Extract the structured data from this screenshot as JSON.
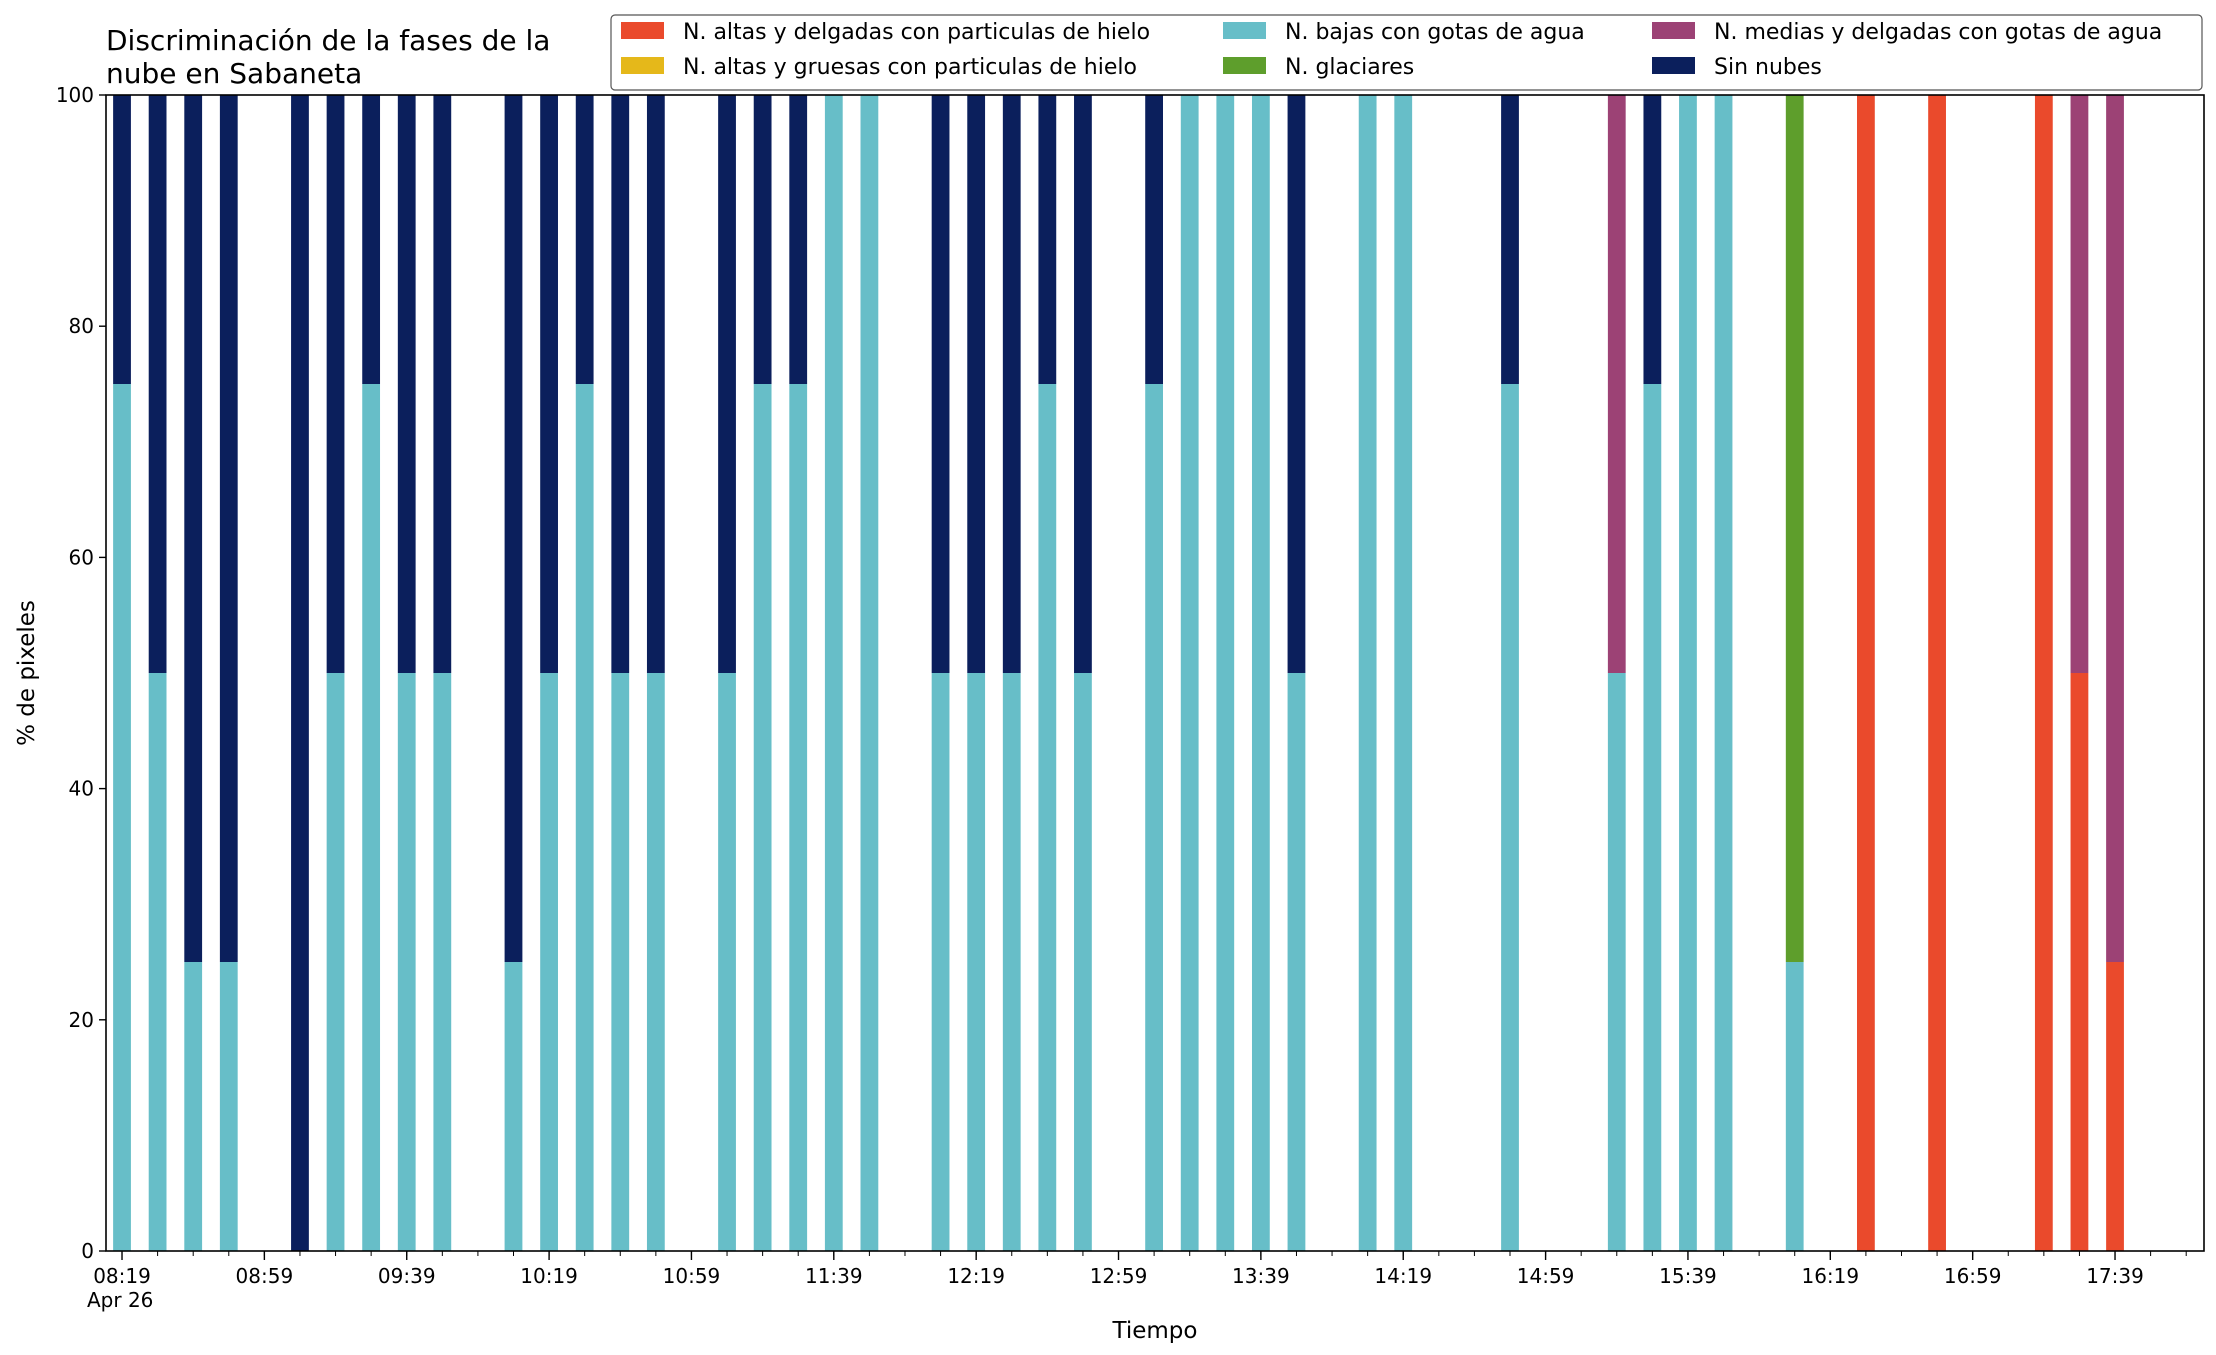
{
  "chart_data": {
    "type": "bar",
    "stacked": true,
    "title_lines": [
      "Discriminación de la fases de la",
      "nube en Sabaneta"
    ],
    "xlabel": "Tiempo",
    "ylabel": "% de pixeles",
    "ylim": [
      0,
      100
    ],
    "yticks": [
      "0",
      "20",
      "40",
      "60",
      "80",
      "100"
    ],
    "xticks": [
      {
        "label": "08:19",
        "sub": "Apr 26",
        "x": 0
      },
      {
        "label": "08:59",
        "x": 4
      },
      {
        "label": "09:39",
        "x": 8
      },
      {
        "label": "10:19",
        "x": 12
      },
      {
        "label": "10:59",
        "x": 16
      },
      {
        "label": "11:39",
        "x": 20
      },
      {
        "label": "12:19",
        "x": 24
      },
      {
        "label": "12:59",
        "x": 28
      },
      {
        "label": "13:39",
        "x": 32
      },
      {
        "label": "14:19",
        "x": 36
      },
      {
        "label": "14:59",
        "x": 40
      },
      {
        "label": "15:39",
        "x": 44
      },
      {
        "label": "16:19",
        "x": 48
      },
      {
        "label": "16:59",
        "x": 52
      },
      {
        "label": "17:39",
        "x": 56
      }
    ],
    "xlim": [
      -0.45,
      58.5
    ],
    "legend_position": "top-right",
    "series": [
      {
        "name": "N. altas y delgadas con particulas de hielo",
        "color": "#EA4A2C"
      },
      {
        "name": "N. altas y gruesas con particulas de hielo",
        "color": "#E5B81A"
      },
      {
        "name": "N. bajas con gotas de agua",
        "color": "#67BEC8"
      },
      {
        "name": "N. glaciares",
        "color": "#5E9E2C"
      },
      {
        "name": "N. medias y delgadas con gotas de agua",
        "color": "#9C4275"
      },
      {
        "name": "Sin nubes",
        "color": "#0B1F5C"
      }
    ],
    "bars": [
      {
        "x": 0,
        "values": [
          0,
          0,
          75,
          0,
          0,
          25
        ]
      },
      {
        "x": 1,
        "values": [
          0,
          0,
          50,
          0,
          0,
          50
        ]
      },
      {
        "x": 2,
        "values": [
          0,
          0,
          25,
          0,
          0,
          75
        ]
      },
      {
        "x": 3,
        "values": [
          0,
          0,
          25,
          0,
          0,
          75
        ]
      },
      {
        "x": 5,
        "values": [
          0,
          0,
          0,
          0,
          0,
          100
        ]
      },
      {
        "x": 6,
        "values": [
          0,
          0,
          50,
          0,
          0,
          50
        ]
      },
      {
        "x": 7,
        "values": [
          0,
          0,
          75,
          0,
          0,
          25
        ]
      },
      {
        "x": 8,
        "values": [
          0,
          0,
          50,
          0,
          0,
          50
        ]
      },
      {
        "x": 9,
        "values": [
          0,
          0,
          50,
          0,
          0,
          50
        ]
      },
      {
        "x": 11,
        "values": [
          0,
          0,
          25,
          0,
          0,
          75
        ]
      },
      {
        "x": 12,
        "values": [
          0,
          0,
          50,
          0,
          0,
          50
        ]
      },
      {
        "x": 13,
        "values": [
          0,
          0,
          75,
          0,
          0,
          25
        ]
      },
      {
        "x": 14,
        "values": [
          0,
          0,
          50,
          0,
          0,
          50
        ]
      },
      {
        "x": 15,
        "values": [
          0,
          0,
          50,
          0,
          0,
          50
        ]
      },
      {
        "x": 17,
        "values": [
          0,
          0,
          50,
          0,
          0,
          50
        ]
      },
      {
        "x": 18,
        "values": [
          0,
          0,
          75,
          0,
          0,
          25
        ]
      },
      {
        "x": 19,
        "values": [
          0,
          0,
          75,
          0,
          0,
          25
        ]
      },
      {
        "x": 20,
        "values": [
          0,
          0,
          100,
          0,
          0,
          0
        ]
      },
      {
        "x": 21,
        "values": [
          0,
          0,
          100,
          0,
          0,
          0
        ]
      },
      {
        "x": 23,
        "values": [
          0,
          0,
          50,
          0,
          0,
          50
        ]
      },
      {
        "x": 24,
        "values": [
          0,
          0,
          50,
          0,
          0,
          50
        ]
      },
      {
        "x": 25,
        "values": [
          0,
          0,
          50,
          0,
          0,
          50
        ]
      },
      {
        "x": 26,
        "values": [
          0,
          0,
          75,
          0,
          0,
          25
        ]
      },
      {
        "x": 27,
        "values": [
          0,
          0,
          50,
          0,
          0,
          50
        ]
      },
      {
        "x": 29,
        "values": [
          0,
          0,
          75,
          0,
          0,
          25
        ]
      },
      {
        "x": 30,
        "values": [
          0,
          0,
          100,
          0,
          0,
          0
        ]
      },
      {
        "x": 31,
        "values": [
          0,
          0,
          100,
          0,
          0,
          0
        ]
      },
      {
        "x": 32,
        "values": [
          0,
          0,
          100,
          0,
          0,
          0
        ]
      },
      {
        "x": 33,
        "values": [
          0,
          0,
          50,
          0,
          0,
          50
        ]
      },
      {
        "x": 35,
        "values": [
          0,
          0,
          100,
          0,
          0,
          0
        ]
      },
      {
        "x": 36,
        "values": [
          0,
          0,
          100,
          0,
          0,
          0
        ]
      },
      {
        "x": 39,
        "values": [
          0,
          0,
          75,
          0,
          0,
          25
        ]
      },
      {
        "x": 42,
        "values": [
          0,
          0,
          50,
          0,
          50,
          0
        ]
      },
      {
        "x": 43,
        "values": [
          0,
          0,
          75,
          0,
          0,
          25
        ]
      },
      {
        "x": 44,
        "values": [
          0,
          0,
          100,
          0,
          0,
          0
        ]
      },
      {
        "x": 45,
        "values": [
          0,
          0,
          100,
          0,
          0,
          0
        ]
      },
      {
        "x": 47,
        "values": [
          0,
          0,
          25,
          75,
          0,
          0
        ]
      },
      {
        "x": 49,
        "values": [
          100,
          0,
          0,
          0,
          0,
          0
        ]
      },
      {
        "x": 51,
        "values": [
          100,
          0,
          0,
          0,
          0,
          0
        ]
      },
      {
        "x": 54,
        "values": [
          100,
          0,
          0,
          0,
          0,
          0
        ]
      },
      {
        "x": 55,
        "values": [
          50,
          0,
          0,
          0,
          50,
          0
        ]
      },
      {
        "x": 56,
        "values": [
          25,
          0,
          0,
          0,
          75,
          0
        ]
      }
    ]
  }
}
